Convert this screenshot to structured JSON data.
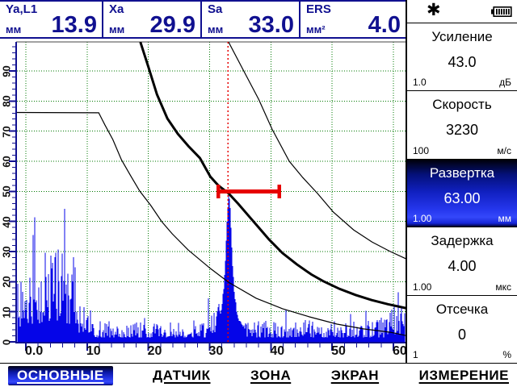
{
  "measurements": [
    {
      "name": "Ya,L1",
      "unit": "мм",
      "value": "13.9"
    },
    {
      "name": "Xa",
      "unit": "мм",
      "value": "29.9"
    },
    {
      "name": "Sa",
      "unit": "мм",
      "value": "33.0"
    },
    {
      "name": "ERS",
      "unit": "мм²",
      "value": "4.0"
    }
  ],
  "statusbar": {
    "star_glyph": "✱",
    "battery": "battery-full-icon"
  },
  "sidebar": {
    "params": [
      {
        "title": "Усиление",
        "value": "43.0",
        "step": "1.0",
        "unit": "дБ",
        "selected": false
      },
      {
        "title": "Скорость",
        "value": "3230",
        "step": "100",
        "unit": "м/с",
        "selected": false
      },
      {
        "title": "Развертка",
        "value": "63.00",
        "step": "1.00",
        "unit": "мм",
        "selected": true
      },
      {
        "title": "Задержка",
        "value": "4.00",
        "step": "1.00",
        "unit": "мкс",
        "selected": false
      },
      {
        "title": "Отсечка",
        "value": "0",
        "step": "1",
        "unit": "%",
        "selected": false
      }
    ]
  },
  "menu": {
    "items": [
      {
        "label": "ОСНОВНЫЕ",
        "selected": true
      },
      {
        "label": "ДАТЧИК",
        "selected": false
      },
      {
        "label": "ЗОНА",
        "selected": false
      },
      {
        "label": "ЭКРАН",
        "selected": false
      },
      {
        "label": "ИЗМЕРЕНИЕ",
        "selected": false
      }
    ]
  },
  "colors": {
    "navy": "#101090",
    "wave_blue": "#0505e8",
    "grid_green": "#007800",
    "gate_red": "#e60000",
    "curve_black": "#000000",
    "accent_blue": "#2030e0"
  },
  "chart_data": {
    "type": "line",
    "title": "A-scan with DAC curves",
    "x_range": [
      0,
      60
    ],
    "y_range": [
      0,
      100
    ],
    "x_ticks": {
      "values": [
        0,
        10,
        20,
        30,
        40,
        50,
        60
      ],
      "labels": [
        "0.0",
        "10",
        "20",
        "30",
        "40",
        "50",
        "60"
      ]
    },
    "y_ticks": {
      "values": [
        0,
        10,
        20,
        30,
        40,
        50,
        60,
        70,
        80,
        90
      ],
      "labels": [
        "0",
        "10",
        "20",
        "30",
        "40",
        "50",
        "60",
        "70",
        "80",
        "90"
      ]
    },
    "grid": "dotted-green",
    "cursor_x": 33.0,
    "gate": {
      "level_pct": 50,
      "from_mm": 31.4,
      "to_mm": 41.4
    },
    "curves": {
      "dac_main": [
        [
          18.7,
          99.6
        ],
        [
          20.0,
          91.3
        ],
        [
          21.4,
          82.2
        ],
        [
          23.1,
          74.2
        ],
        [
          24.8,
          69.1
        ],
        [
          26.5,
          65.1
        ],
        [
          28.4,
          61.1
        ],
        [
          30.1,
          54.9
        ],
        [
          31.4,
          52.0
        ],
        [
          33.1,
          49.3
        ],
        [
          34.7,
          45.8
        ],
        [
          36.3,
          42.0
        ],
        [
          38.0,
          38.0
        ],
        [
          39.7,
          34.0
        ],
        [
          41.9,
          29.5
        ],
        [
          44.2,
          25.8
        ],
        [
          46.6,
          22.4
        ],
        [
          48.5,
          20.2
        ],
        [
          51.2,
          17.6
        ],
        [
          53.8,
          15.6
        ],
        [
          56.4,
          13.9
        ],
        [
          59.1,
          12.5
        ],
        [
          62.5,
          11.0
        ]
      ],
      "dac_upper": [
        [
          33.0,
          100
        ],
        [
          35.7,
          89.5
        ],
        [
          38.0,
          80.6
        ],
        [
          40.2,
          70.7
        ],
        [
          43.0,
          60.0
        ],
        [
          45.2,
          54.6
        ],
        [
          47.6,
          49.3
        ],
        [
          50.2,
          43.1
        ],
        [
          53.5,
          37.2
        ],
        [
          56.5,
          33.2
        ],
        [
          59.5,
          30.0
        ],
        [
          62.5,
          27.2
        ]
      ],
      "dac_lower": [
        [
          -1.6,
          76.2
        ],
        [
          11.9,
          76.1
        ],
        [
          12.9,
          72.1
        ],
        [
          14.2,
          67.2
        ],
        [
          15.6,
          60.5
        ],
        [
          17.1,
          55.2
        ],
        [
          18.6,
          50.1
        ],
        [
          20.4,
          45.3
        ],
        [
          22.2,
          39.9
        ],
        [
          23.9,
          35.9
        ],
        [
          26.5,
          30.5
        ],
        [
          30.1,
          24.4
        ],
        [
          33.1,
          19.8
        ],
        [
          37.6,
          14.5
        ],
        [
          41.9,
          11.0
        ],
        [
          46.3,
          8.3
        ],
        [
          50.8,
          5.9
        ],
        [
          55.1,
          4.3
        ],
        [
          59.5,
          3.2
        ],
        [
          62.5,
          1.9
        ]
      ]
    },
    "echo_peak": {
      "profile": [
        [
          31.0,
          7
        ],
        [
          31.5,
          12
        ],
        [
          31.8,
          9
        ],
        [
          32.1,
          14
        ],
        [
          32.4,
          20
        ],
        [
          32.65,
          30
        ],
        [
          32.85,
          41
        ],
        [
          33.0,
          46
        ],
        [
          33.15,
          49.5
        ],
        [
          33.3,
          46
        ],
        [
          33.45,
          40
        ],
        [
          33.6,
          32
        ],
        [
          33.8,
          24
        ],
        [
          34.0,
          17
        ],
        [
          34.3,
          12
        ],
        [
          34.6,
          9
        ],
        [
          35.0,
          7
        ],
        [
          35.4,
          6
        ],
        [
          35.8,
          5
        ]
      ]
    },
    "noise_zones": [
      {
        "from": -1.6,
        "to": 0.6,
        "base": 5,
        "rand": 15
      },
      {
        "from": 0.6,
        "to": 8.6,
        "base": 6,
        "rand": 25
      },
      {
        "from": 8.6,
        "to": 10.6,
        "base": 3,
        "rand": 9
      },
      {
        "from": 10.6,
        "to": 29.4,
        "base": 1.5,
        "rand": 5
      },
      {
        "from": 29.4,
        "to": 31.0,
        "base": 3,
        "rand": 9
      },
      {
        "from": 35.8,
        "to": 58.5,
        "base": 1.5,
        "rand": 6
      },
      {
        "from": 58.5,
        "to": 62.0,
        "base": 2.5,
        "rand": 10
      }
    ],
    "seed": 12345
  }
}
